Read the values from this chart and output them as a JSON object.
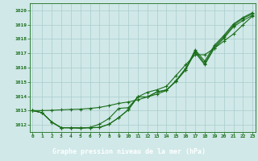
{
  "xlabel": "Graphe pression niveau de la mer (hPa)",
  "ylim": [
    1011.5,
    1020.5
  ],
  "xlim": [
    -0.3,
    23.3
  ],
  "yticks": [
    1012,
    1013,
    1014,
    1015,
    1016,
    1017,
    1018,
    1019,
    1020
  ],
  "xticks": [
    0,
    1,
    2,
    3,
    4,
    5,
    6,
    7,
    8,
    9,
    10,
    11,
    12,
    13,
    14,
    15,
    16,
    17,
    18,
    19,
    20,
    21,
    22,
    23
  ],
  "background_color": "#d0e8e8",
  "grid_color": "#aacccc",
  "line_color": "#1a6e1a",
  "xlabel_bg": "#2d6e2d",
  "xlabel_fg": "#ffffff",
  "line1": [
    1013.0,
    1012.85,
    1012.2,
    1011.8,
    1011.8,
    1011.78,
    1011.8,
    1011.82,
    1012.05,
    1012.5,
    1013.05,
    1013.95,
    1013.95,
    1014.3,
    1014.42,
    1015.05,
    1015.85,
    1017.25,
    1016.45,
    1017.55,
    1018.25,
    1019.05,
    1019.5,
    1019.85
  ],
  "line2": [
    1013.0,
    1012.85,
    1012.2,
    1011.8,
    1011.8,
    1011.78,
    1011.8,
    1011.82,
    1012.05,
    1012.5,
    1013.05,
    1013.95,
    1013.95,
    1014.3,
    1014.45,
    1015.05,
    1015.85,
    1017.05,
    1016.2,
    1017.35,
    1018.05,
    1018.85,
    1019.3,
    1019.65
  ],
  "line3": [
    1013.0,
    1013.0,
    1013.02,
    1013.05,
    1013.08,
    1013.1,
    1013.15,
    1013.22,
    1013.35,
    1013.5,
    1013.6,
    1013.75,
    1013.95,
    1014.15,
    1014.4,
    1015.1,
    1015.95,
    1017.15,
    1016.3,
    1017.45,
    1018.15,
    1018.95,
    1019.45,
    1019.75
  ],
  "line4": [
    1013.0,
    1012.85,
    1012.2,
    1011.8,
    1011.8,
    1011.78,
    1011.82,
    1012.05,
    1012.45,
    1013.15,
    1013.2,
    1013.95,
    1014.28,
    1014.45,
    1014.7,
    1015.45,
    1016.2,
    1016.9,
    1016.9,
    1017.35,
    1017.85,
    1018.35,
    1019.0,
    1019.6
  ]
}
